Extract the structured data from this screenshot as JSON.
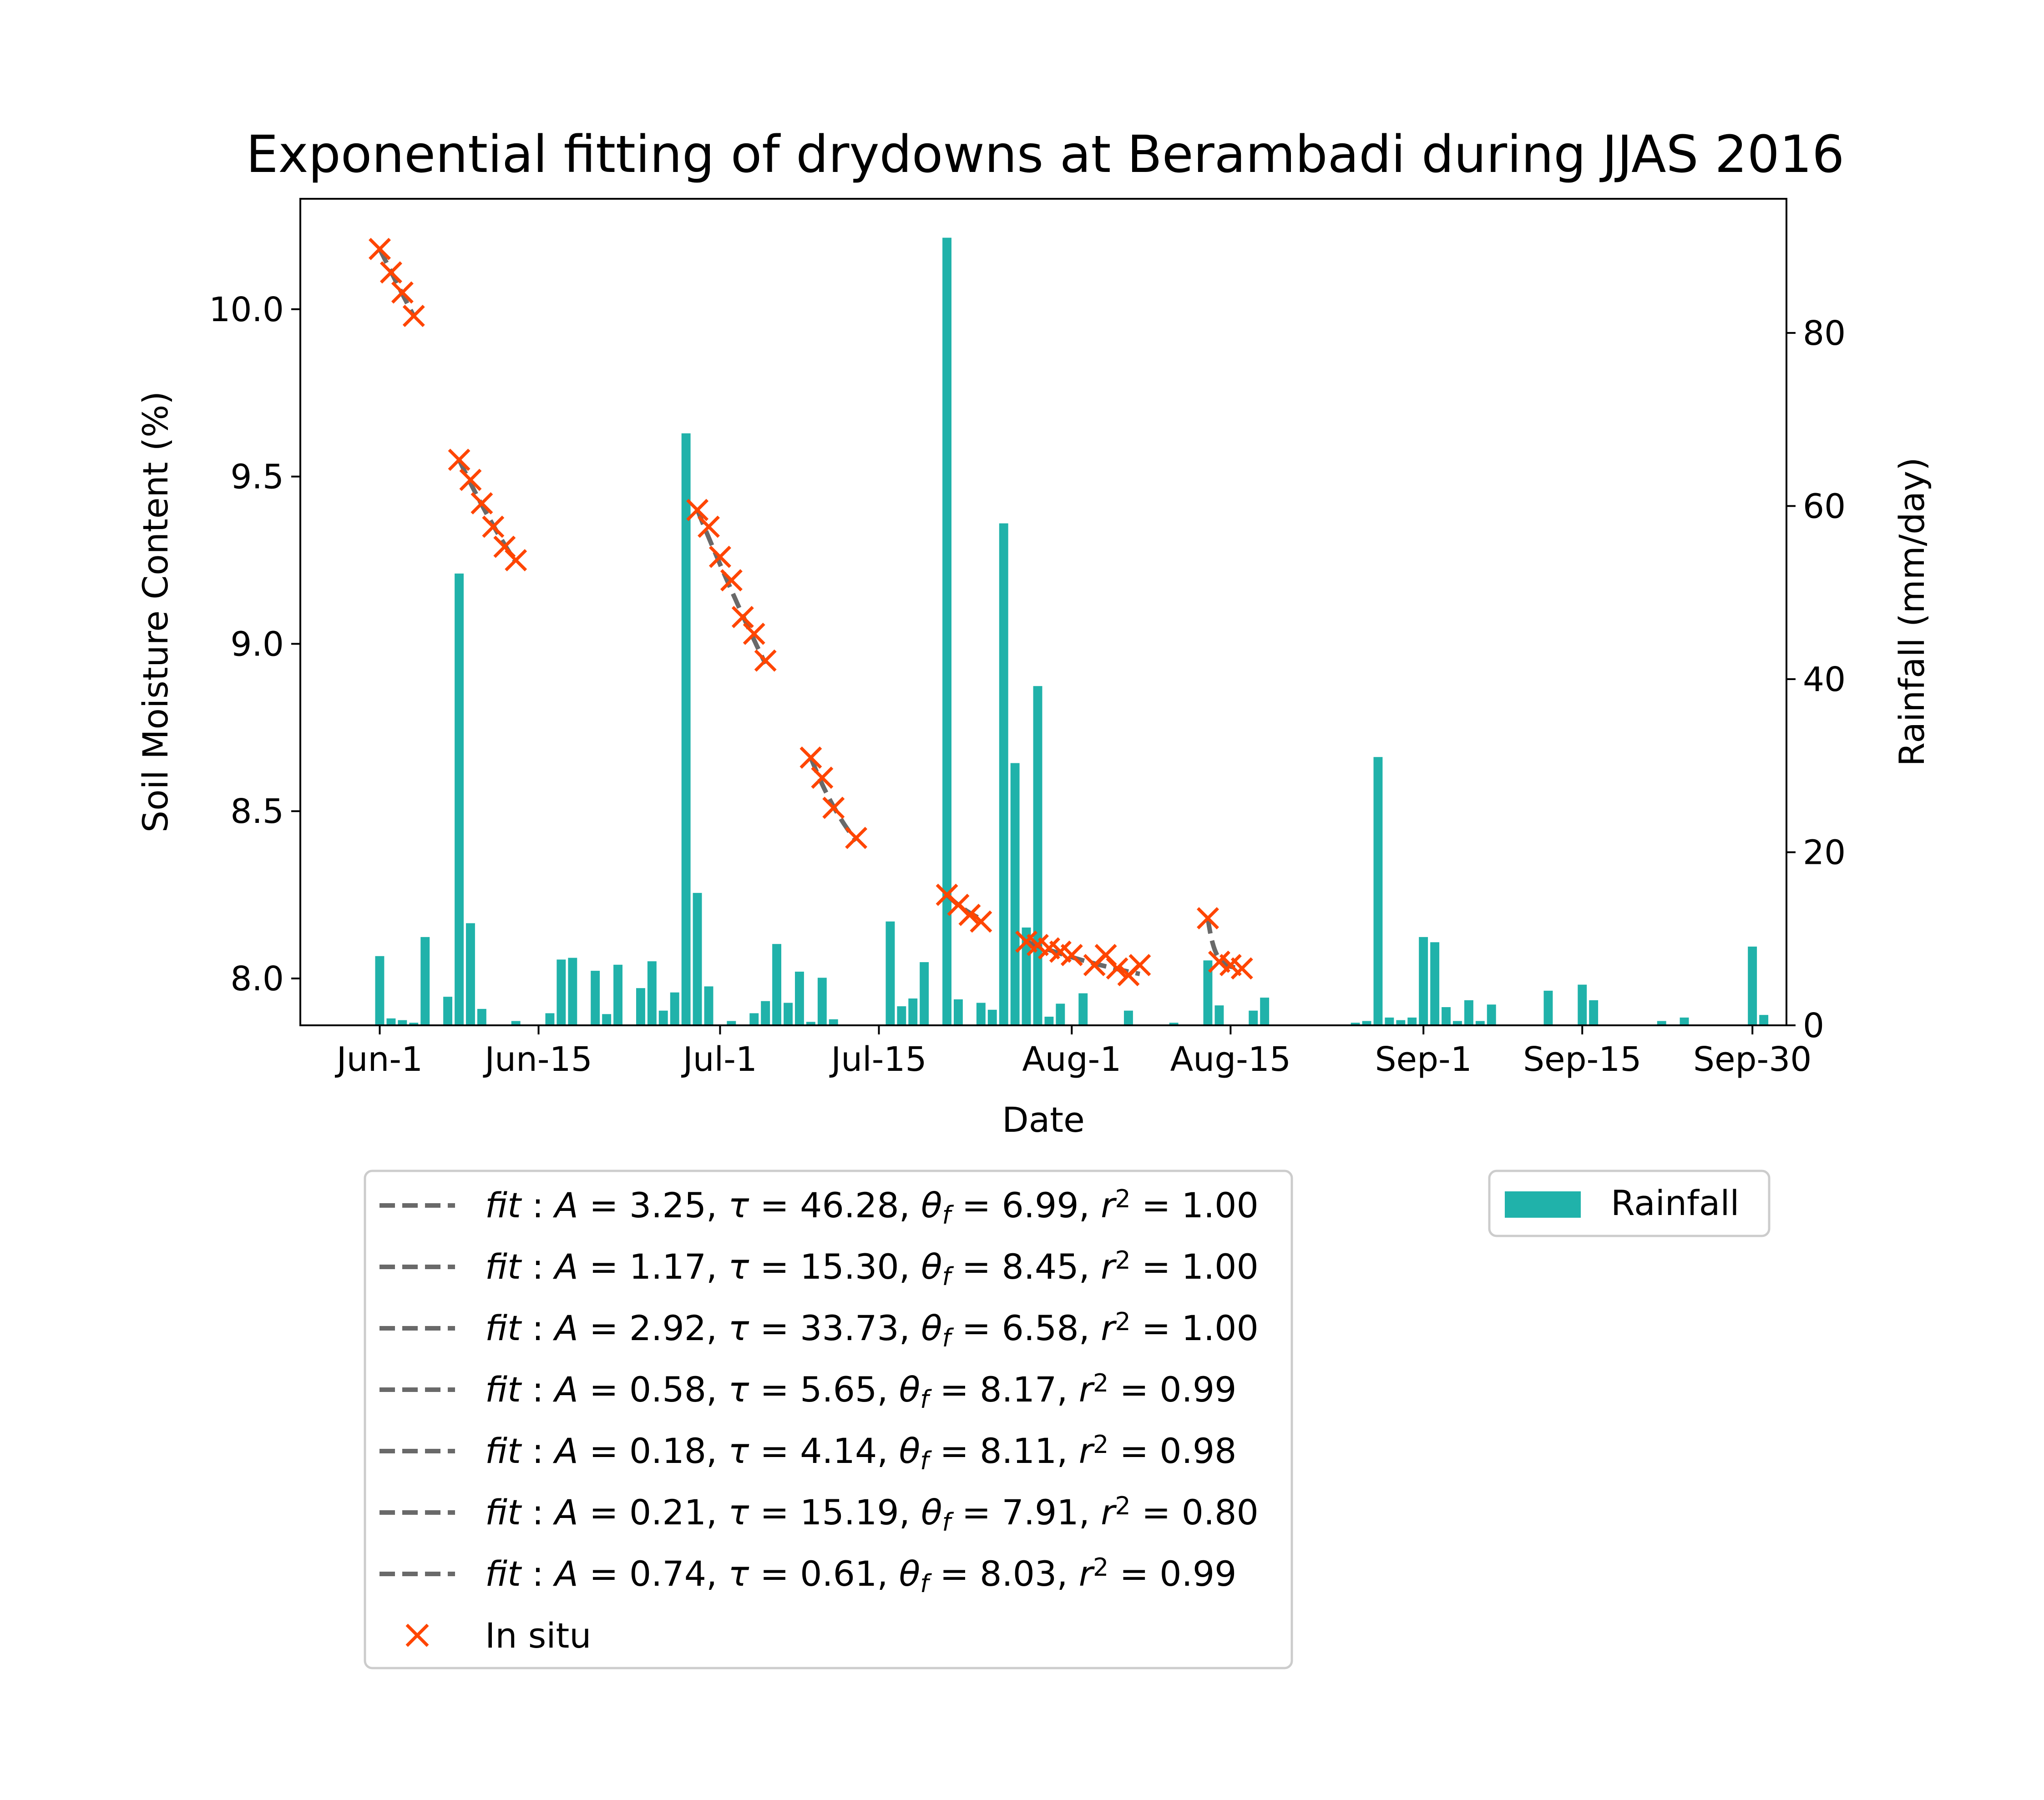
{
  "chart_data": {
    "type": "bar",
    "title": "Exponential fitting of drydowns at Berambadi during JJAS 2016",
    "xlabel": "Date",
    "ylabel": "Soil Moisture Content (%)",
    "y2label": "Rainfall (mm/day)",
    "x_start": "2016-05-25",
    "x_end": "2016-10-03",
    "ylim": [
      7.86,
      10.33
    ],
    "y2lim": [
      0,
      95.5
    ],
    "yticks": [
      {
        "value": 8.0,
        "label": "8.0"
      },
      {
        "value": 8.5,
        "label": "8.5"
      },
      {
        "value": 9.0,
        "label": "9.0"
      },
      {
        "value": 9.5,
        "label": "9.5"
      },
      {
        "value": 10.0,
        "label": "10.0"
      }
    ],
    "y2ticks": [
      {
        "value": 0,
        "label": "0"
      },
      {
        "value": 20,
        "label": "20"
      },
      {
        "value": 40,
        "label": "40"
      },
      {
        "value": 60,
        "label": "60"
      },
      {
        "value": 80,
        "label": "80"
      }
    ],
    "xticks": [
      {
        "date": "2016-06-01",
        "label": "Jun-1"
      },
      {
        "date": "2016-06-15",
        "label": "Jun-15"
      },
      {
        "date": "2016-07-01",
        "label": "Jul-1"
      },
      {
        "date": "2016-07-15",
        "label": "Jul-15"
      },
      {
        "date": "2016-08-01",
        "label": "Aug-1"
      },
      {
        "date": "2016-08-15",
        "label": "Aug-15"
      },
      {
        "date": "2016-09-01",
        "label": "Sep-1"
      },
      {
        "date": "2016-09-15",
        "label": "Sep-15"
      },
      {
        "date": "2016-09-30",
        "label": "Sep-30"
      }
    ],
    "colors": {
      "rainfall": "#20b2aa",
      "in_situ": "#ff4500",
      "fit": "#696969"
    },
    "rainfall": {
      "name": "Rainfall",
      "points": [
        {
          "date": "2016-06-01",
          "value": 8.0
        },
        {
          "date": "2016-06-02",
          "value": 0.8
        },
        {
          "date": "2016-06-03",
          "value": 0.6
        },
        {
          "date": "2016-06-04",
          "value": 0.3
        },
        {
          "date": "2016-06-05",
          "value": 10.2
        },
        {
          "date": "2016-06-07",
          "value": 3.3
        },
        {
          "date": "2016-06-08",
          "value": 52.2
        },
        {
          "date": "2016-06-09",
          "value": 11.8
        },
        {
          "date": "2016-06-10",
          "value": 1.9
        },
        {
          "date": "2016-06-13",
          "value": 0.5
        },
        {
          "date": "2016-06-16",
          "value": 1.4
        },
        {
          "date": "2016-06-17",
          "value": 7.6
        },
        {
          "date": "2016-06-18",
          "value": 7.8
        },
        {
          "date": "2016-06-20",
          "value": 6.3
        },
        {
          "date": "2016-06-21",
          "value": 1.3
        },
        {
          "date": "2016-06-22",
          "value": 7.0
        },
        {
          "date": "2016-06-24",
          "value": 4.3
        },
        {
          "date": "2016-06-25",
          "value": 7.4
        },
        {
          "date": "2016-06-26",
          "value": 1.7
        },
        {
          "date": "2016-06-27",
          "value": 3.8
        },
        {
          "date": "2016-06-28",
          "value": 68.4
        },
        {
          "date": "2016-06-29",
          "value": 15.3
        },
        {
          "date": "2016-06-30",
          "value": 4.5
        },
        {
          "date": "2016-07-02",
          "value": 0.5
        },
        {
          "date": "2016-07-04",
          "value": 1.4
        },
        {
          "date": "2016-07-05",
          "value": 2.8
        },
        {
          "date": "2016-07-06",
          "value": 9.4
        },
        {
          "date": "2016-07-07",
          "value": 2.6
        },
        {
          "date": "2016-07-08",
          "value": 6.2
        },
        {
          "date": "2016-07-09",
          "value": 0.4
        },
        {
          "date": "2016-07-10",
          "value": 5.5
        },
        {
          "date": "2016-07-11",
          "value": 0.7
        },
        {
          "date": "2016-07-16",
          "value": 12.0
        },
        {
          "date": "2016-07-17",
          "value": 2.2
        },
        {
          "date": "2016-07-18",
          "value": 3.1
        },
        {
          "date": "2016-07-19",
          "value": 7.3
        },
        {
          "date": "2016-07-21",
          "value": 91.0
        },
        {
          "date": "2016-07-22",
          "value": 3.0
        },
        {
          "date": "2016-07-24",
          "value": 2.6
        },
        {
          "date": "2016-07-25",
          "value": 1.8
        },
        {
          "date": "2016-07-26",
          "value": 58.0
        },
        {
          "date": "2016-07-27",
          "value": 30.3
        },
        {
          "date": "2016-07-28",
          "value": 11.3
        },
        {
          "date": "2016-07-29",
          "value": 39.2
        },
        {
          "date": "2016-07-30",
          "value": 1.0
        },
        {
          "date": "2016-07-31",
          "value": 2.5
        },
        {
          "date": "2016-08-02",
          "value": 3.7
        },
        {
          "date": "2016-08-06",
          "value": 1.7
        },
        {
          "date": "2016-08-10",
          "value": 0.3
        },
        {
          "date": "2016-08-13",
          "value": 7.5
        },
        {
          "date": "2016-08-14",
          "value": 2.3
        },
        {
          "date": "2016-08-17",
          "value": 1.7
        },
        {
          "date": "2016-08-18",
          "value": 3.2
        },
        {
          "date": "2016-08-26",
          "value": 0.3
        },
        {
          "date": "2016-08-27",
          "value": 0.5
        },
        {
          "date": "2016-08-28",
          "value": 31.0
        },
        {
          "date": "2016-08-29",
          "value": 0.9
        },
        {
          "date": "2016-08-30",
          "value": 0.6
        },
        {
          "date": "2016-08-31",
          "value": 0.9
        },
        {
          "date": "2016-09-01",
          "value": 10.2
        },
        {
          "date": "2016-09-02",
          "value": 9.6
        },
        {
          "date": "2016-09-03",
          "value": 2.1
        },
        {
          "date": "2016-09-04",
          "value": 0.5
        },
        {
          "date": "2016-09-05",
          "value": 2.9
        },
        {
          "date": "2016-09-06",
          "value": 0.5
        },
        {
          "date": "2016-09-07",
          "value": 2.4
        },
        {
          "date": "2016-09-12",
          "value": 4.0
        },
        {
          "date": "2016-09-15",
          "value": 4.7
        },
        {
          "date": "2016-09-16",
          "value": 2.9
        },
        {
          "date": "2016-09-22",
          "value": 0.5
        },
        {
          "date": "2016-09-24",
          "value": 0.9
        },
        {
          "date": "2016-09-30",
          "value": 9.1
        },
        {
          "date": "2016-10-01",
          "value": 1.2
        }
      ]
    },
    "in_situ": {
      "name": "In situ",
      "points": [
        {
          "date": "2016-06-01",
          "value": 10.18
        },
        {
          "date": "2016-06-02",
          "value": 10.11
        },
        {
          "date": "2016-06-03",
          "value": 10.05
        },
        {
          "date": "2016-06-04",
          "value": 9.98
        },
        {
          "date": "2016-06-08",
          "value": 9.55
        },
        {
          "date": "2016-06-09",
          "value": 9.49
        },
        {
          "date": "2016-06-10",
          "value": 9.42
        },
        {
          "date": "2016-06-11",
          "value": 9.35
        },
        {
          "date": "2016-06-12",
          "value": 9.29
        },
        {
          "date": "2016-06-13",
          "value": 9.25
        },
        {
          "date": "2016-06-29",
          "value": 9.4
        },
        {
          "date": "2016-06-30",
          "value": 9.35
        },
        {
          "date": "2016-07-01",
          "value": 9.26
        },
        {
          "date": "2016-07-02",
          "value": 9.19
        },
        {
          "date": "2016-07-03",
          "value": 9.08
        },
        {
          "date": "2016-07-04",
          "value": 9.03
        },
        {
          "date": "2016-07-05",
          "value": 8.95
        },
        {
          "date": "2016-07-09",
          "value": 8.66
        },
        {
          "date": "2016-07-10",
          "value": 8.6
        },
        {
          "date": "2016-07-11",
          "value": 8.51
        },
        {
          "date": "2016-07-13",
          "value": 8.42
        },
        {
          "date": "2016-07-21",
          "value": 8.25
        },
        {
          "date": "2016-07-22",
          "value": 8.22
        },
        {
          "date": "2016-07-23",
          "value": 8.19
        },
        {
          "date": "2016-07-24",
          "value": 8.17
        },
        {
          "date": "2016-07-28",
          "value": 8.11
        },
        {
          "date": "2016-07-29",
          "value": 8.1
        },
        {
          "date": "2016-07-30",
          "value": 8.09
        },
        {
          "date": "2016-07-31",
          "value": 8.08
        },
        {
          "date": "2016-08-01",
          "value": 8.07
        },
        {
          "date": "2016-08-03",
          "value": 8.04
        },
        {
          "date": "2016-08-04",
          "value": 8.07
        },
        {
          "date": "2016-08-05",
          "value": 8.03
        },
        {
          "date": "2016-08-06",
          "value": 8.01
        },
        {
          "date": "2016-08-07",
          "value": 8.04
        },
        {
          "date": "2016-08-13",
          "value": 8.18
        },
        {
          "date": "2016-08-14",
          "value": 8.05
        },
        {
          "date": "2016-08-15",
          "value": 8.04
        },
        {
          "date": "2016-08-16",
          "value": 8.03
        }
      ]
    },
    "fits": [
      {
        "label": "fit : A = 3.25, τ = 46.28, θ_f = 6.99, r² = 1.00",
        "A": 3.25,
        "tau": 46.28,
        "theta_f": 6.99,
        "r2": 1.0,
        "start": "2016-06-01",
        "end": "2016-06-04"
      },
      {
        "label": "fit : A = 1.17, τ = 15.30, θ_f = 8.45, r² = 1.00",
        "A": 1.17,
        "tau": 15.3,
        "theta_f": 8.45,
        "r2": 1.0,
        "start": "2016-06-08",
        "end": "2016-06-13"
      },
      {
        "label": "fit : A = 2.92, τ = 33.73, θ_f = 6.58, r² = 1.00",
        "A": 2.92,
        "tau": 33.73,
        "theta_f": 6.58,
        "r2": 1.0,
        "start": "2016-06-29",
        "end": "2016-07-05"
      },
      {
        "label": "fit : A = 0.58, τ = 5.65, θ_f = 8.17, r² = 0.99",
        "A": 0.58,
        "tau": 5.65,
        "theta_f": 8.17,
        "r2": 0.99,
        "start": "2016-07-09",
        "end": "2016-07-13"
      },
      {
        "label": "fit : A = 0.18, τ = 4.14, θ_f = 8.11, r² = 0.98",
        "A": 0.18,
        "tau": 4.14,
        "theta_f": 8.11,
        "r2": 0.98,
        "start": "2016-07-21",
        "end": "2016-07-24"
      },
      {
        "label": "fit : A = 0.21, τ = 15.19, θ_f = 7.91, r² = 0.80",
        "A": 0.21,
        "tau": 15.19,
        "theta_f": 7.91,
        "r2": 0.8,
        "start": "2016-07-28",
        "end": "2016-08-07"
      },
      {
        "label": "fit : A = 0.74, τ = 0.61, θ_f = 8.03, r² = 0.99",
        "A": 0.74,
        "tau": 0.61,
        "theta_f": 8.03,
        "r2": 0.99,
        "start": "2016-08-13",
        "end": "2016-08-16"
      }
    ],
    "fit_legend": [
      {
        "A": "3.25",
        "tau": "46.28",
        "theta": "6.99",
        "r2": "1.00"
      },
      {
        "A": "1.17",
        "tau": "15.30",
        "theta": "8.45",
        "r2": "1.00"
      },
      {
        "A": "2.92",
        "tau": "33.73",
        "theta": "6.58",
        "r2": "1.00"
      },
      {
        "A": "0.58",
        "tau": "5.65",
        "theta": "8.17",
        "r2": "0.99"
      },
      {
        "A": "0.18",
        "tau": "4.14",
        "theta": "8.11",
        "r2": "0.98"
      },
      {
        "A": "0.21",
        "tau": "15.19",
        "theta": "7.91",
        "r2": "0.80"
      },
      {
        "A": "0.74",
        "tau": "0.61",
        "theta": "8.03",
        "r2": "0.99"
      }
    ],
    "legend_fit_word": "fit",
    "legend_insitu_label": "In situ",
    "legend_rain_label": "Rainfall",
    "legend_placement": "below-plot",
    "grid": false
  }
}
